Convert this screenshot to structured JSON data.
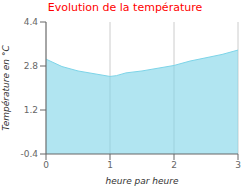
{
  "chart_data": {
    "type": "area",
    "title": "Evolution de la température",
    "title_color": "#ff0000",
    "xlabel": "heure par heure",
    "ylabel": "Température en °C",
    "x": [
      0,
      0.25,
      0.5,
      0.75,
      1.0,
      1.1,
      1.25,
      1.5,
      1.75,
      2.0,
      2.25,
      2.5,
      2.75,
      3.0
    ],
    "values": [
      3.05,
      2.78,
      2.62,
      2.52,
      2.42,
      2.45,
      2.55,
      2.62,
      2.72,
      2.82,
      2.98,
      3.1,
      3.22,
      3.38
    ],
    "color": "#7dd4e8",
    "xlim": [
      0,
      3
    ],
    "ylim": [
      -0.4,
      4.4
    ],
    "xticks": [
      0,
      1,
      2,
      3
    ],
    "yticks": [
      -0.4,
      1.2,
      2.8,
      4.4
    ],
    "grid": "x"
  }
}
